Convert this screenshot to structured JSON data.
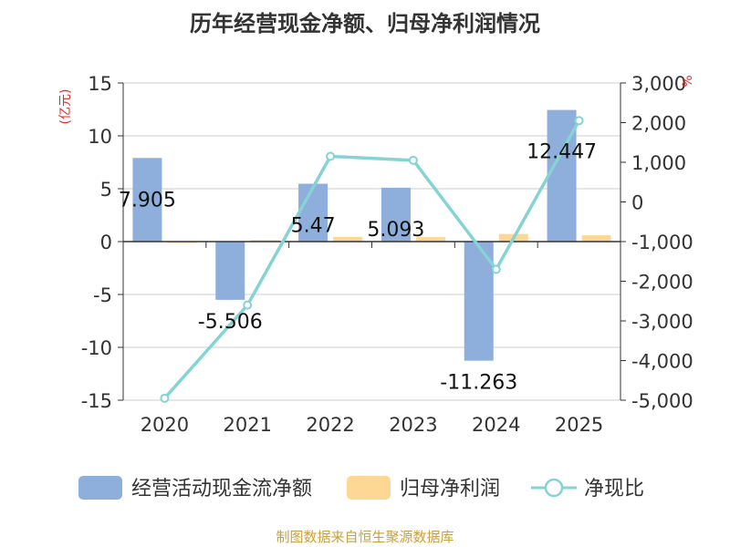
{
  "chart_data": {
    "type": "bar",
    "title": "历年经营现金净额、归母净利润情况",
    "categories": [
      "2020",
      "2021",
      "2022",
      "2023",
      "2024",
      "2025"
    ],
    "y_left": {
      "unit_label": "(亿元)",
      "ylim": [
        -15,
        15
      ],
      "ticks": [
        "15",
        "10",
        "5",
        "0",
        "-5",
        "-10",
        "-15"
      ],
      "tick_values": [
        15,
        10,
        5,
        0,
        -5,
        -10,
        -15
      ]
    },
    "y_right": {
      "unit_label": "%",
      "ylim": [
        -5000,
        3000
      ],
      "ticks": [
        "3,000",
        "2,000",
        "1,000",
        "0",
        "-1,000",
        "-2,000",
        "-3,000",
        "-4,000",
        "-5,000"
      ],
      "tick_values": [
        3000,
        2000,
        1000,
        0,
        -1000,
        -2000,
        -3000,
        -4000,
        -5000
      ]
    },
    "series": [
      {
        "name": "经营活动现金流净额",
        "type": "bar",
        "axis": "left",
        "color": "#8eaedb",
        "values": [
          7.905,
          -5.506,
          5.47,
          5.093,
          -11.263,
          12.447
        ],
        "labels": [
          "7.905",
          "-5.506",
          "5.47",
          "5.093",
          "-11.263",
          "12.447"
        ]
      },
      {
        "name": "归母净利润",
        "type": "bar",
        "axis": "left",
        "color": "#fdd794",
        "values": [
          -0.12,
          0.15,
          0.45,
          0.42,
          0.72,
          0.6
        ]
      },
      {
        "name": "净现比",
        "type": "line",
        "axis": "right",
        "color": "#86d3d4",
        "values": [
          -4950,
          -2600,
          1150,
          1050,
          -1700,
          2050
        ]
      }
    ],
    "grid": true,
    "legend": "bottom",
    "source": "制图数据来自恒生聚源数据库"
  }
}
